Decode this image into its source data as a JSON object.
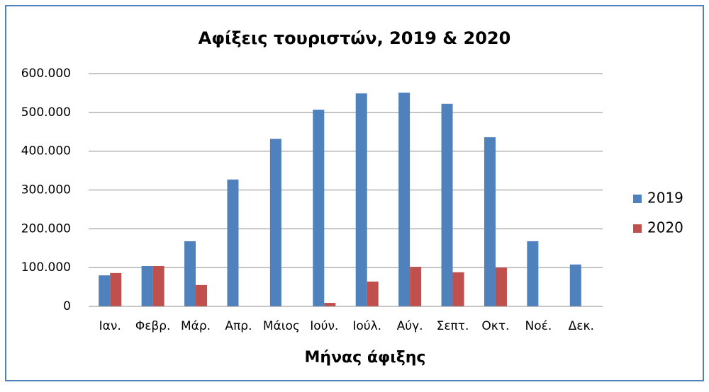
{
  "chart_data": {
    "type": "bar",
    "title": "Αφίξεις τουριστών, 2019 & 2020",
    "x_label": "Μήνας άφιξης",
    "categories": [
      "Ιαν.",
      "Φεβρ.",
      "Μάρ.",
      "Απρ.",
      "Μάιος",
      "Ιούν.",
      "Ιούλ.",
      "Αύγ.",
      "Σεπτ.",
      "Οκτ.",
      "Νοέ.",
      "Δεκ."
    ],
    "series": [
      {
        "name": "2019",
        "color": "#4f81bd",
        "values": [
          80000,
          104000,
          168000,
          327000,
          432000,
          507000,
          549000,
          551000,
          522000,
          436000,
          168000,
          108000
        ]
      },
      {
        "name": "2020",
        "color": "#c0504d",
        "values": [
          86000,
          104000,
          55000,
          0,
          0,
          9000,
          64000,
          102000,
          88000,
          100000,
          0,
          0
        ]
      }
    ],
    "ylim": [
      0,
      600000
    ],
    "yticks": [
      0,
      {
        "value": 100000,
        "label": "100.000"
      },
      {
        "value": 200000,
        "label": "200.000"
      },
      {
        "value": 300000,
        "label": "300.000"
      },
      {
        "value": 400000,
        "label": "400.000"
      },
      {
        "value": 500000,
        "label": "500.000"
      },
      {
        "value": 600000,
        "label": "600.000"
      }
    ],
    "grid": true,
    "legend": "right"
  }
}
